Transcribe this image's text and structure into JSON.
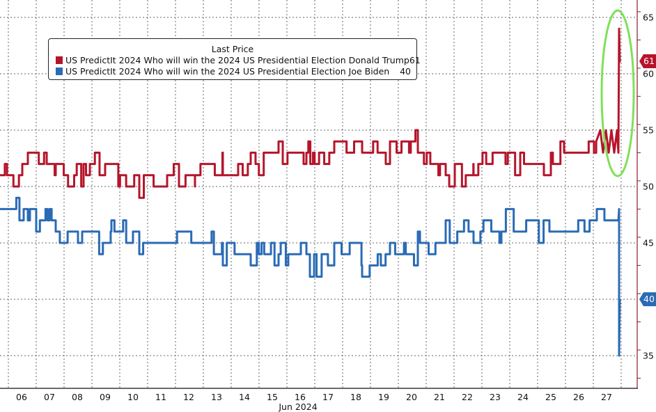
{
  "chart_data": {
    "type": "line",
    "title": "",
    "xlabel": "Jun 2024",
    "ylabel": "",
    "ylim": [
      32,
      66
    ],
    "yticks": [
      35,
      40,
      45,
      50,
      55,
      60,
      65
    ],
    "x_tick_labels": [
      "06",
      "07",
      "08",
      "09",
      "10",
      "11",
      "12",
      "13",
      "14",
      "15",
      "16",
      "17",
      "18",
      "19",
      "20",
      "21",
      "22",
      "23",
      "24",
      "25",
      "26",
      "27"
    ],
    "grid": true,
    "legend": {
      "title": "Last Price",
      "position": "upper-left"
    },
    "series": [
      {
        "name": "US PredictIt 2024 Who will win the 2024 US Presidential Election Donald Trump",
        "color": "#B5152B",
        "last": 61,
        "x": [
          "06",
          "07",
          "08",
          "09",
          "10",
          "11",
          "12",
          "13",
          "14",
          "15",
          "16",
          "17",
          "18",
          "19",
          "20",
          "21",
          "22",
          "23",
          "24",
          "25",
          "26",
          "27",
          "27-late"
        ],
        "values": [
          51,
          52,
          51,
          52,
          51,
          50,
          51,
          52,
          51,
          52,
          53,
          53,
          54,
          53,
          54,
          52,
          51,
          52,
          52,
          52,
          53,
          54,
          61
        ],
        "peak": 64
      },
      {
        "name": "US PredictIt 2024 Who will win the 2024 US Presidential Election Joe Biden",
        "color": "#2A6BB5",
        "last": 40,
        "x": [
          "06",
          "07",
          "08",
          "09",
          "10",
          "11",
          "12",
          "13",
          "14",
          "15",
          "16",
          "17",
          "18",
          "19",
          "20",
          "21",
          "22",
          "23",
          "24",
          "25",
          "26",
          "27",
          "27-late"
        ],
        "values": [
          48,
          47,
          46,
          45,
          46,
          45,
          45,
          45,
          44,
          44,
          44,
          43,
          44,
          43,
          44,
          45,
          46,
          46,
          47,
          46,
          46,
          47,
          40
        ],
        "trough": 35
      }
    ],
    "annotations": [
      {
        "type": "ellipse",
        "color": "#7FE05A",
        "around": "final Trump spike on 27 Jun"
      }
    ]
  },
  "legend": {
    "title": "Last Price",
    "items": [
      {
        "label": "US PredictIt 2024 Who will win the 2024 US Presidential Election Donald Trump",
        "value": "61",
        "color": "#B5152B"
      },
      {
        "label": "US PredictIt 2024 Who will win the 2024 US Presidential Election Joe Biden",
        "value": "40",
        "color": "#2A6BB5"
      }
    ]
  },
  "axis": {
    "y": [
      "65",
      "60",
      "55",
      "50",
      "45",
      "40",
      "35"
    ],
    "x": [
      "06",
      "07",
      "08",
      "09",
      "10",
      "11",
      "12",
      "13",
      "14",
      "15",
      "16",
      "17",
      "18",
      "19",
      "20",
      "21",
      "22",
      "23",
      "24",
      "25",
      "26",
      "27"
    ],
    "x_unit": "Jun 2024"
  },
  "tags": {
    "trump": "61",
    "biden": "40"
  }
}
